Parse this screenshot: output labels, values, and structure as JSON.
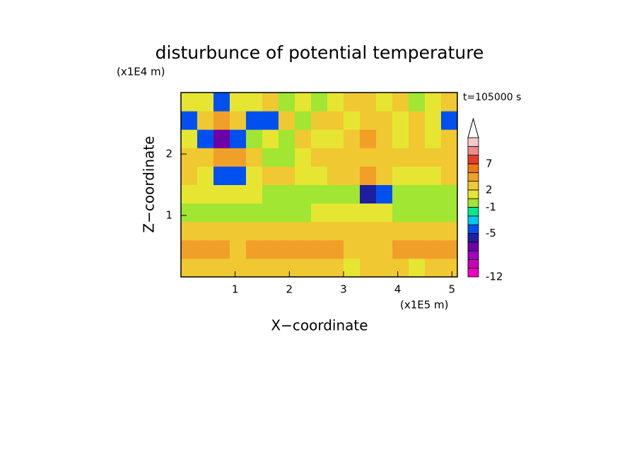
{
  "chart_data": {
    "type": "contour",
    "title": "disturbunce of potential temperature",
    "x_label": "X−coordinate",
    "y_label": "Z−coordinate",
    "x_unit": "(x1E5 m)",
    "y_unit": "(x1E4 m)",
    "time_label": "t=105000 s",
    "xlim": [
      0,
      5.1
    ],
    "ylim": [
      0,
      3
    ],
    "xticks": [
      1,
      2,
      3,
      4,
      5
    ],
    "yticks": [
      1,
      2
    ],
    "x": [
      0.15,
      0.45,
      0.75,
      1.05,
      1.35,
      1.65,
      1.95,
      2.25,
      2.55,
      2.85,
      3.15,
      3.45,
      3.75,
      4.05,
      4.35,
      4.65,
      4.95
    ],
    "y": [
      0.15,
      0.45,
      0.75,
      1.05,
      1.35,
      1.65,
      1.95,
      2.25,
      2.55,
      2.85
    ],
    "z": [
      [
        3,
        3,
        2,
        2,
        2,
        3,
        3,
        2,
        2,
        2,
        1,
        2,
        2,
        2,
        1,
        2,
        3
      ],
      [
        4,
        4,
        4,
        3,
        4,
        4,
        4,
        4,
        4,
        4,
        3,
        3,
        3,
        4,
        4,
        4,
        4
      ],
      [
        3,
        3,
        3,
        3,
        3,
        3,
        3,
        3,
        3,
        2,
        2,
        2,
        2,
        2,
        2,
        3,
        3
      ],
      [
        0,
        0,
        0,
        0,
        0,
        0,
        0,
        0,
        1,
        1,
        1,
        1,
        1,
        0,
        0,
        0,
        0
      ],
      [
        1,
        1,
        1,
        1,
        1,
        0,
        0,
        -1,
        -1,
        0,
        -1,
        -6,
        -5,
        -1,
        0,
        0,
        0
      ],
      [
        2,
        1,
        -5,
        -5,
        1,
        2,
        2,
        1,
        1,
        2,
        3,
        4,
        3,
        1,
        1,
        1,
        2
      ],
      [
        2,
        3,
        4,
        4,
        2,
        -1,
        0,
        1,
        2,
        3,
        2,
        3,
        2,
        2,
        2,
        2,
        2
      ],
      [
        1,
        -5,
        -7,
        -5,
        0,
        1,
        -1,
        2,
        1,
        1,
        2,
        4,
        2,
        1,
        2,
        1,
        3
      ],
      [
        -4,
        3,
        5,
        3,
        -5,
        -5,
        2,
        -1,
        2,
        3,
        1,
        3,
        2,
        1,
        2,
        1,
        -5
      ],
      [
        1,
        1,
        -5,
        1,
        1,
        2,
        0,
        1,
        -1,
        1,
        2,
        2,
        1,
        2,
        0,
        1,
        2
      ]
    ],
    "colorbar": {
      "boundaries": [
        -12,
        null,
        null,
        null,
        null,
        -5,
        null,
        null,
        -1,
        null,
        2,
        null,
        null,
        7,
        null,
        null,
        null
      ],
      "colors": [
        "#f000c0",
        "#c800b4",
        "#a000c0",
        "#6e00a8",
        "#1e1ea0",
        "#0050f0",
        "#00c8f0",
        "#00e890",
        "#a0e632",
        "#e6e632",
        "#f0c832",
        "#f0a028",
        "#f07818",
        "#e63c28",
        "#f08c8c",
        "#f8c8c8"
      ]
    }
  }
}
